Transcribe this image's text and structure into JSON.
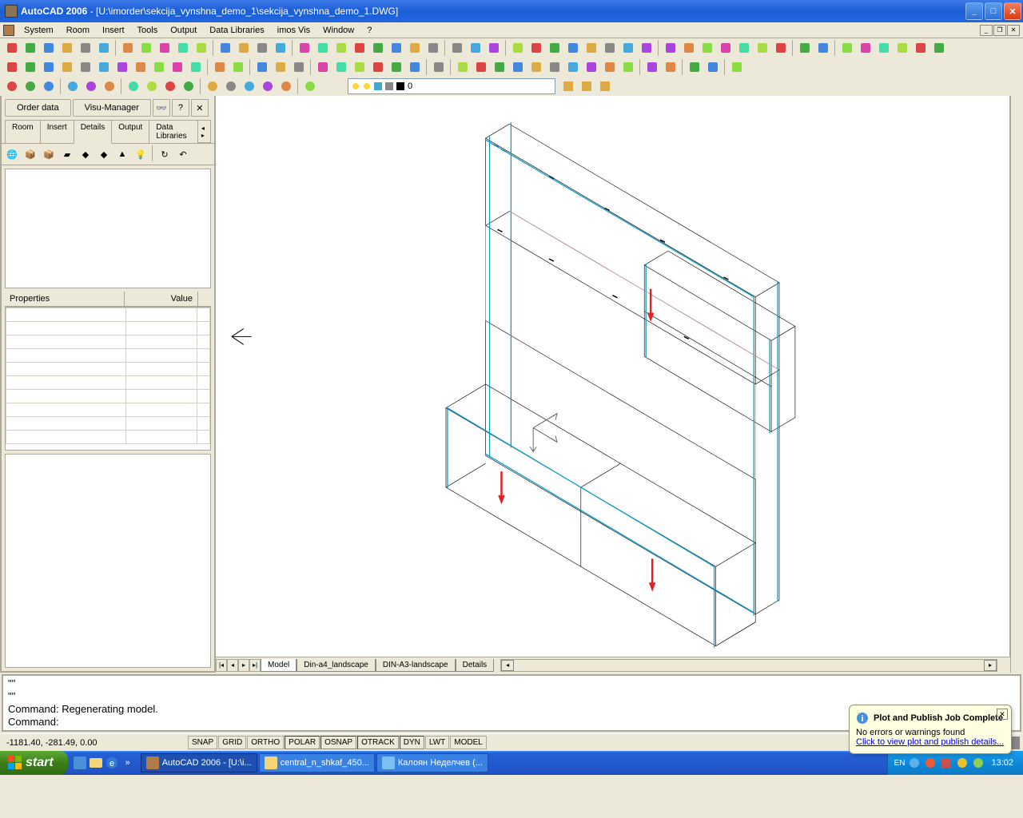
{
  "titlebar": {
    "app": "AutoCAD 2006",
    "doc": " - [U:\\imorder\\sekcija_vynshna_demo_1\\sekcija_vynshna_demo_1.DWG]"
  },
  "menu": [
    "System",
    "Room",
    "Insert",
    "Tools",
    "Output",
    "Data Libraries",
    "imos Vis",
    "Window",
    "?"
  ],
  "side": {
    "order_btn": "Order data",
    "visu_btn": "Visu-Manager",
    "tabs": [
      "Room",
      "Insert",
      "Details",
      "Output",
      "Data Libraries"
    ],
    "active_tab": 2,
    "props_h1": "Properties",
    "props_h2": "Value"
  },
  "layer": {
    "name": "0"
  },
  "canvas_tabs": [
    "Model",
    "Din-a4_landscape",
    "DIN-A3-landscape",
    "Details"
  ],
  "cmd": {
    "l1": "\"\"",
    "l2": "\"\"",
    "l3": "Command: Regenerating model.",
    "l4": "Command:"
  },
  "status": {
    "coords": "-1181.40, -281.49, 0.00",
    "toggles": [
      "SNAP",
      "GRID",
      "ORTHO",
      "POLAR",
      "OSNAP",
      "OTRACK",
      "DYN",
      "LWT",
      "MODEL"
    ],
    "toggle_on": [
      3,
      4,
      5,
      6
    ]
  },
  "notify": {
    "title": "Plot and Publish Job Complete",
    "msg": "No errors or warnings found",
    "link": "Click to view plot and publish details..."
  },
  "taskbar": {
    "start": "start",
    "tasks": [
      {
        "label": "AutoCAD 2006 - [U:\\i...",
        "active": true,
        "color": "#b07b49"
      },
      {
        "label": "central_n_shkaf_450...",
        "active": false,
        "color": "#f5d57a"
      },
      {
        "label": "Калоян Неделчев (...",
        "active": false,
        "color": "#7cc0f0"
      }
    ],
    "lang": "EN",
    "clock": "13:02"
  },
  "colors": {
    "wire_blue": "#0d9bc9",
    "wire_black": "#1a1a1a",
    "wire_red": "#e42020",
    "wire_pink": "#e5a5c5",
    "wire_gray": "#888",
    "bg": "#ffffff"
  }
}
